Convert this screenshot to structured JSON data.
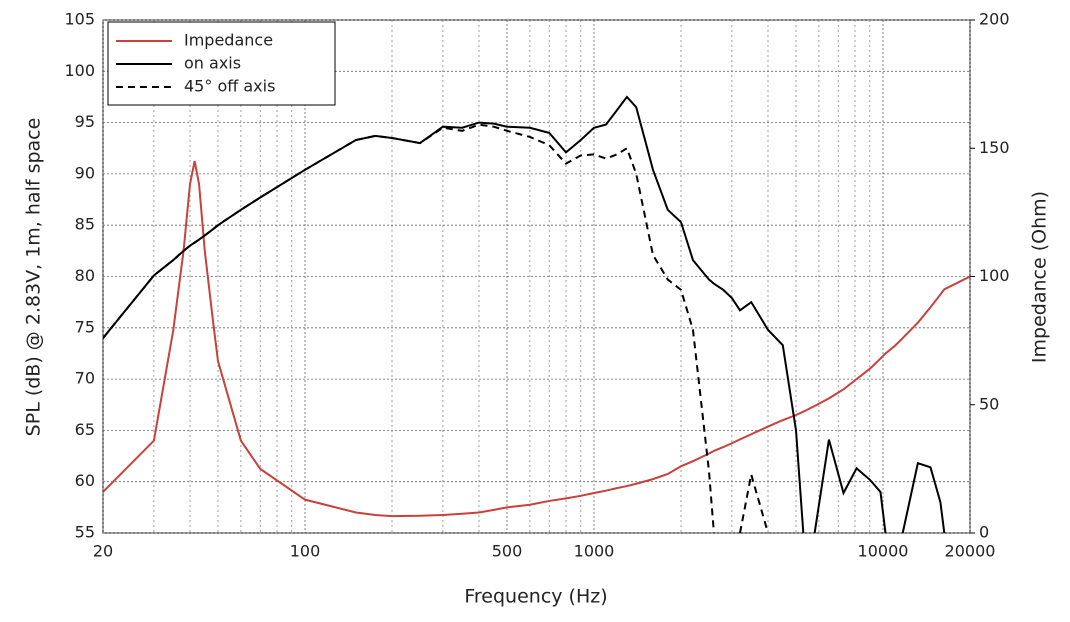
{
  "chart_data": {
    "type": "line",
    "xlabel": "Frequency (Hz)",
    "ylabel": "SPL (dB) @ 2.83V, 1m, half space",
    "y2label": "Impedance (Ohm)",
    "xscale": "log",
    "xlim": [
      20,
      20000
    ],
    "xticks": [
      20,
      100,
      500,
      1000,
      10000,
      20000
    ],
    "xticks_minor": [
      30,
      40,
      50,
      60,
      70,
      80,
      90,
      200,
      300,
      400,
      600,
      700,
      800,
      900,
      2000,
      3000,
      4000,
      5000,
      6000,
      7000,
      8000,
      9000
    ],
    "ylim": [
      55,
      105
    ],
    "yticks": [
      55,
      60,
      65,
      70,
      75,
      80,
      85,
      90,
      95,
      100,
      105
    ],
    "y2lim": [
      0,
      200
    ],
    "y2ticks": [
      0,
      50,
      100,
      150,
      200
    ],
    "grid": true,
    "legend": "upper left",
    "x": [
      20,
      30,
      35,
      38,
      40,
      41.5,
      43,
      45,
      48,
      50,
      60,
      70,
      100,
      150,
      175,
      200,
      250,
      300,
      350,
      400,
      450,
      500,
      600,
      700,
      800,
      900,
      1000,
      1100,
      1200,
      1300,
      1400,
      1600,
      1800,
      2000,
      2200,
      2500,
      2600,
      2800,
      3000,
      3200,
      3500,
      4000,
      4500,
      5000,
      5300,
      5500,
      5800,
      6500,
      7300,
      8100,
      9000,
      9800,
      10200,
      11000,
      11700,
      13200,
      14600,
      15800,
      16300,
      20000
    ],
    "series": [
      {
        "name": "Impedance",
        "color": "#c8413a",
        "axis": "y2",
        "linestyle": "solid",
        "values": [
          16,
          36,
          79,
          110,
          136,
          145,
          136,
          110,
          83,
          67,
          36,
          25,
          13,
          8,
          7,
          6.6,
          6.7,
          7,
          7.5,
          8,
          9,
          10,
          11,
          12.5,
          13.5,
          14.5,
          15.6,
          16.5,
          17.5,
          18.3,
          19.2,
          21,
          23,
          26,
          28,
          31,
          32,
          33.5,
          35,
          36.5,
          38.5,
          41.5,
          44,
          46,
          47.3,
          48.2,
          49.5,
          52.5,
          56,
          60,
          64,
          68,
          70,
          73,
          76,
          82,
          88,
          93,
          95,
          100
        ]
      },
      {
        "name": "on axis",
        "color": "#000000",
        "linestyle": "solid",
        "values": [
          74,
          80.1,
          81.6,
          82.5,
          83,
          83.3,
          83.6,
          84,
          84.6,
          85,
          86.5,
          87.7,
          90.4,
          93.3,
          93.7,
          93.5,
          93,
          94.6,
          94.5,
          95,
          94.9,
          94.6,
          94.5,
          94,
          92.1,
          93.3,
          94.5,
          94.8,
          96.2,
          97.5,
          96.5,
          90.4,
          86.5,
          85.3,
          81.6,
          79.7,
          79.3,
          78.7,
          77.9,
          76.7,
          77.5,
          74.8,
          73.3,
          65,
          55,
          null,
          55,
          64.1,
          58.9,
          61.3,
          60.2,
          59,
          55,
          null,
          55,
          61.8,
          61.4,
          58,
          55,
          null
        ]
      },
      {
        "name": "45° off axis",
        "color": "#000000",
        "linestyle": "dashed",
        "values": [
          74,
          80.1,
          81.6,
          82.5,
          83,
          83.3,
          83.6,
          84,
          84.6,
          85,
          86.5,
          87.7,
          90.4,
          93.3,
          93.7,
          93.5,
          93,
          94.5,
          94.2,
          94.8,
          94.6,
          94.2,
          93.6,
          92.8,
          91,
          91.8,
          91.9,
          91.5,
          91.9,
          92.5,
          90,
          82.1,
          79.7,
          78.7,
          74.8,
          61,
          55,
          null,
          null,
          55,
          60.7,
          55,
          null,
          null,
          null,
          null,
          null,
          null,
          null,
          null,
          null,
          null,
          null,
          null,
          null,
          null,
          null,
          null,
          null,
          null
        ]
      }
    ]
  }
}
